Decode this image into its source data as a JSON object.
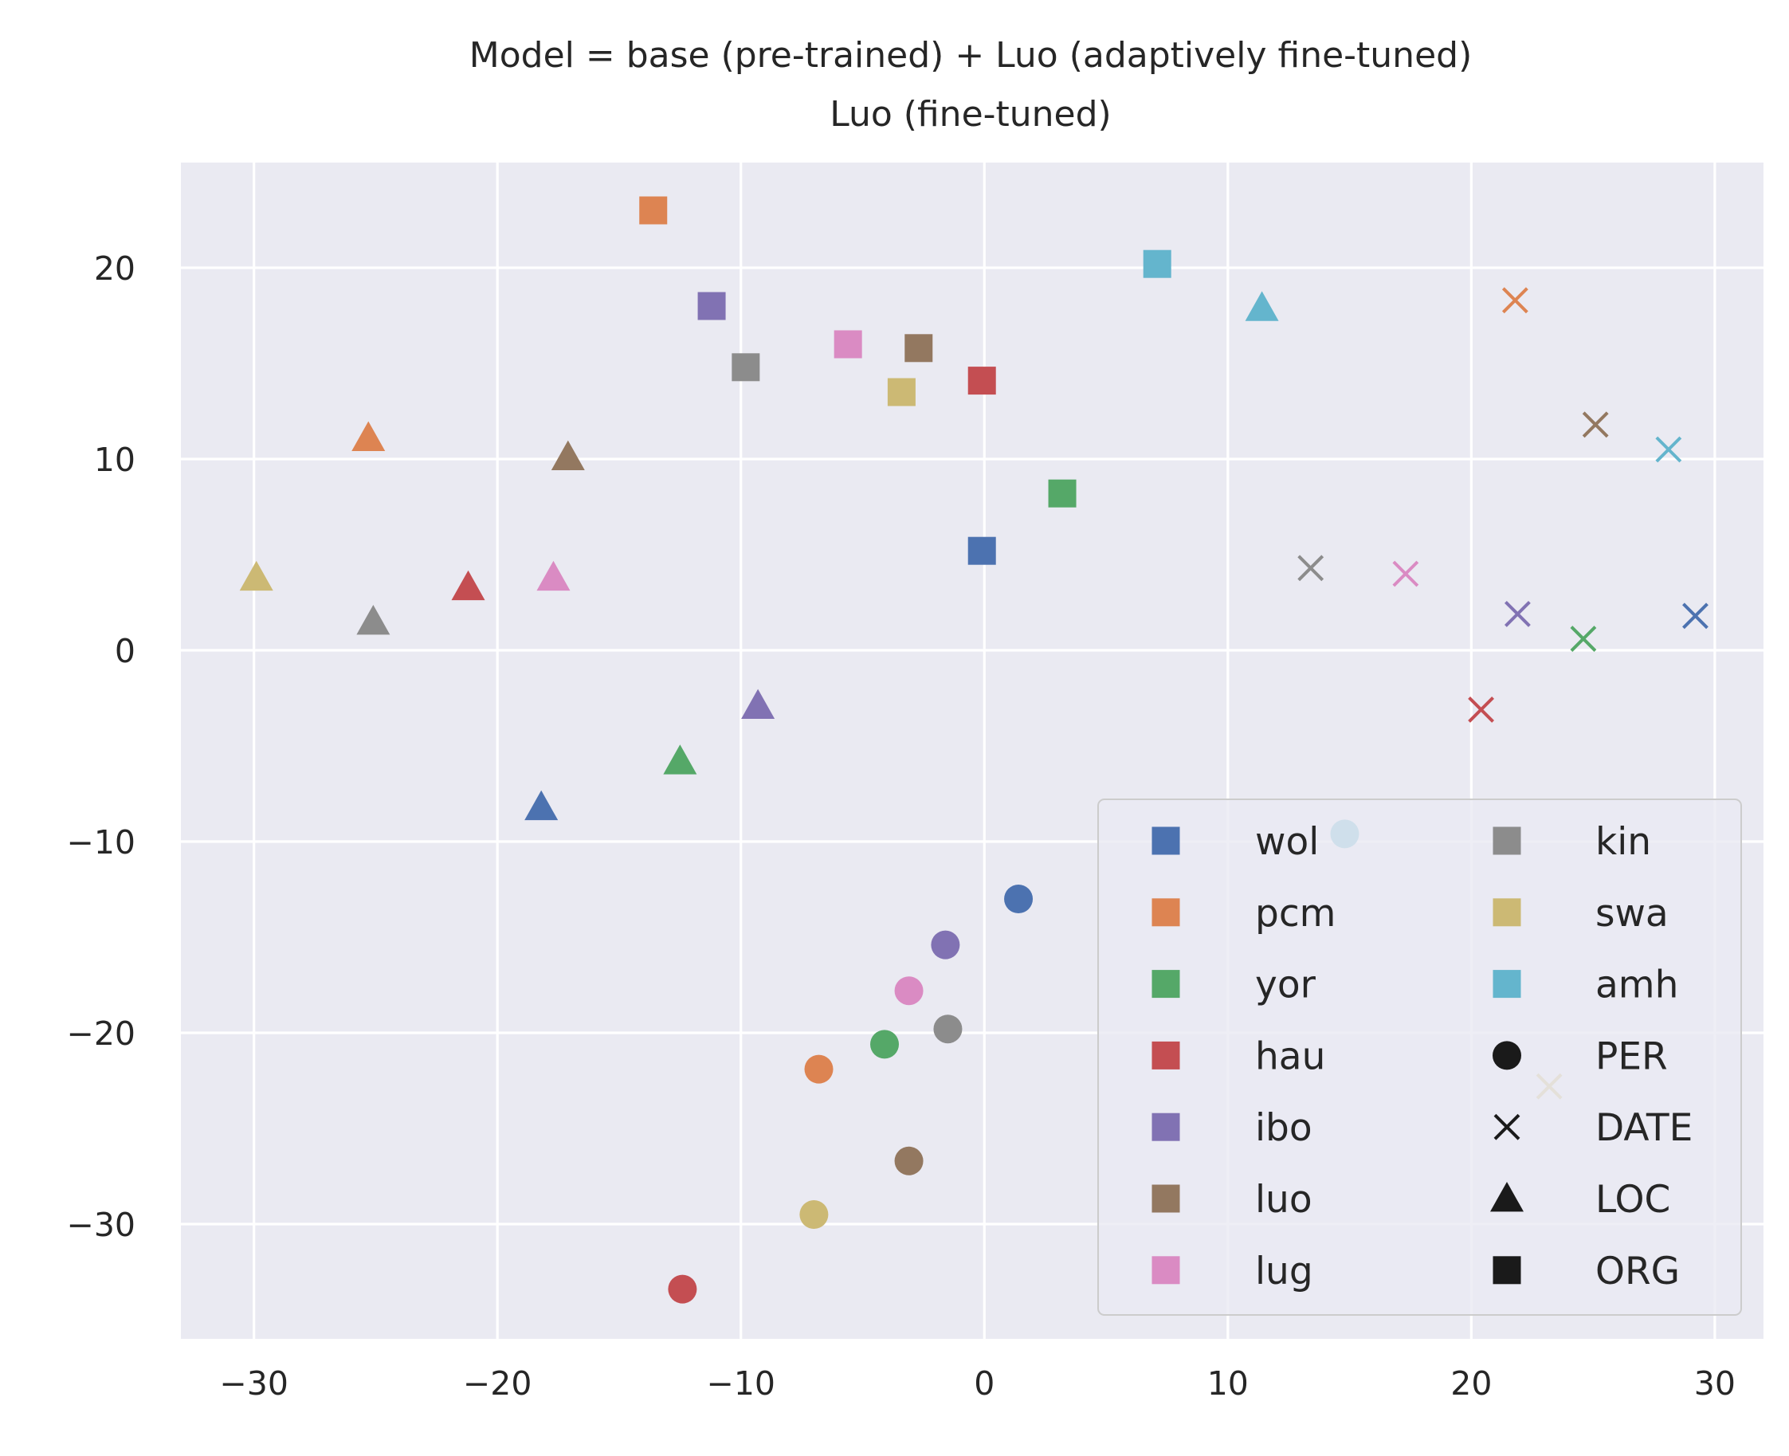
{
  "chart_data": {
    "type": "scatter",
    "title": "Model = base (pre-trained) + Luo (adaptively fine-tuned)",
    "subtitle": "Luo (fine-tuned)",
    "xlabel": "",
    "ylabel": "",
    "xlim": [
      -33,
      32
    ],
    "ylim": [
      -36,
      25.5
    ],
    "xticks": [
      -30,
      -20,
      -10,
      0,
      10,
      20,
      30
    ],
    "xtick_labels": [
      "−30",
      "−20",
      "−10",
      "0",
      "10",
      "20",
      "30"
    ],
    "yticks": [
      20,
      10,
      0,
      -10,
      -20,
      -30
    ],
    "ytick_labels": [
      "20",
      "10",
      "0",
      "−10",
      "−20",
      "−30"
    ],
    "grid": true,
    "background": "#eaeaf2",
    "legend_position": "lower-right",
    "languages": [
      {
        "name": "wol",
        "color": "#4c72b0"
      },
      {
        "name": "pcm",
        "color": "#dd8452"
      },
      {
        "name": "yor",
        "color": "#55a868"
      },
      {
        "name": "hau",
        "color": "#c44e52"
      },
      {
        "name": "ibo",
        "color": "#8172b3"
      },
      {
        "name": "luo",
        "color": "#937860"
      },
      {
        "name": "lug",
        "color": "#da8bc3"
      },
      {
        "name": "kin",
        "color": "#8c8c8c"
      },
      {
        "name": "swa",
        "color": "#ccb974"
      },
      {
        "name": "amh",
        "color": "#64b5cd"
      }
    ],
    "entity_types": [
      {
        "name": "PER",
        "marker": "circle"
      },
      {
        "name": "DATE",
        "marker": "x"
      },
      {
        "name": "LOC",
        "marker": "triangle"
      },
      {
        "name": "ORG",
        "marker": "square"
      }
    ],
    "points": [
      {
        "lang": "wol",
        "type": "ORG",
        "x": -0.1,
        "y": 5.2
      },
      {
        "lang": "pcm",
        "type": "ORG",
        "x": -13.6,
        "y": 23.0
      },
      {
        "lang": "yor",
        "type": "ORG",
        "x": 3.2,
        "y": 8.2
      },
      {
        "lang": "hau",
        "type": "ORG",
        "x": -0.1,
        "y": 14.1
      },
      {
        "lang": "ibo",
        "type": "ORG",
        "x": -11.2,
        "y": 18.0
      },
      {
        "lang": "luo",
        "type": "ORG",
        "x": -2.7,
        "y": 15.8
      },
      {
        "lang": "lug",
        "type": "ORG",
        "x": -5.6,
        "y": 16.0
      },
      {
        "lang": "kin",
        "type": "ORG",
        "x": -9.8,
        "y": 14.8
      },
      {
        "lang": "swa",
        "type": "ORG",
        "x": -3.4,
        "y": 13.5
      },
      {
        "lang": "amh",
        "type": "ORG",
        "x": 7.1,
        "y": 20.2
      },
      {
        "lang": "wol",
        "type": "LOC",
        "x": -18.2,
        "y": -8.2
      },
      {
        "lang": "pcm",
        "type": "LOC",
        "x": -25.3,
        "y": 11.1
      },
      {
        "lang": "yor",
        "type": "LOC",
        "x": -12.5,
        "y": -5.8
      },
      {
        "lang": "hau",
        "type": "LOC",
        "x": -21.2,
        "y": 3.3
      },
      {
        "lang": "ibo",
        "type": "LOC",
        "x": -9.3,
        "y": -2.9
      },
      {
        "lang": "luo",
        "type": "LOC",
        "x": -17.1,
        "y": 10.1
      },
      {
        "lang": "lug",
        "type": "LOC",
        "x": -17.7,
        "y": 3.8
      },
      {
        "lang": "kin",
        "type": "LOC",
        "x": -25.1,
        "y": 1.5
      },
      {
        "lang": "swa",
        "type": "LOC",
        "x": -29.9,
        "y": 3.8
      },
      {
        "lang": "amh",
        "type": "LOC",
        "x": 11.4,
        "y": 17.9
      },
      {
        "lang": "wol",
        "type": "PER",
        "x": 1.4,
        "y": -13.0
      },
      {
        "lang": "pcm",
        "type": "PER",
        "x": -6.8,
        "y": -21.9
      },
      {
        "lang": "yor",
        "type": "PER",
        "x": -4.1,
        "y": -20.6
      },
      {
        "lang": "hau",
        "type": "PER",
        "x": -12.4,
        "y": -33.4
      },
      {
        "lang": "ibo",
        "type": "PER",
        "x": -1.6,
        "y": -15.4
      },
      {
        "lang": "luo",
        "type": "PER",
        "x": -3.1,
        "y": -26.7
      },
      {
        "lang": "lug",
        "type": "PER",
        "x": -3.1,
        "y": -17.8
      },
      {
        "lang": "kin",
        "type": "PER",
        "x": -1.5,
        "y": -19.8
      },
      {
        "lang": "swa",
        "type": "PER",
        "x": -7.0,
        "y": -29.5
      },
      {
        "lang": "amh",
        "type": "PER",
        "x": 14.8,
        "y": -9.6
      },
      {
        "lang": "wol",
        "type": "DATE",
        "x": 29.2,
        "y": 1.8
      },
      {
        "lang": "pcm",
        "type": "DATE",
        "x": 21.8,
        "y": 18.3
      },
      {
        "lang": "yor",
        "type": "DATE",
        "x": 24.6,
        "y": 0.6
      },
      {
        "lang": "hau",
        "type": "DATE",
        "x": 20.4,
        "y": -3.1
      },
      {
        "lang": "ibo",
        "type": "DATE",
        "x": 21.9,
        "y": 1.9
      },
      {
        "lang": "luo",
        "type": "DATE",
        "x": 25.1,
        "y": 11.8
      },
      {
        "lang": "lug",
        "type": "DATE",
        "x": 17.3,
        "y": 4.0
      },
      {
        "lang": "kin",
        "type": "DATE",
        "x": 13.4,
        "y": 4.3
      },
      {
        "lang": "swa",
        "type": "DATE",
        "x": 23.2,
        "y": -22.8
      },
      {
        "lang": "amh",
        "type": "DATE",
        "x": 28.1,
        "y": 10.5
      }
    ]
  }
}
